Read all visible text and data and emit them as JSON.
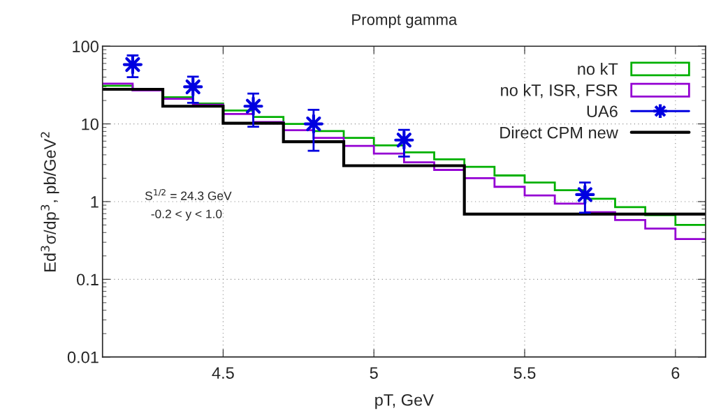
{
  "chart_data": {
    "type": "histogram",
    "title": "Prompt gamma",
    "xlabel": "pT, GeV",
    "ylabel": "Ed$^{3}$σ/dp$^{3}$, pb/GeV$^{2}$",
    "annotations": [
      "S$^{1/2}$ = 24.3 GeV",
      "-0.2 < y < 1.0"
    ],
    "series": [
      {
        "name": "no kT",
        "color": "#00b000",
        "bins": [
          4.1,
          4.2,
          4.3,
          4.4,
          4.5,
          4.6,
          4.7,
          4.8,
          4.9,
          5.0,
          5.1,
          5.2,
          5.3,
          5.4,
          5.5,
          5.6,
          5.7,
          5.8,
          5.9,
          6.0,
          6.1
        ],
        "values": [
          31,
          27,
          22,
          18.3,
          14.9,
          12.3,
          10,
          8.1,
          6.6,
          5.3,
          4.3,
          3.5,
          2.8,
          2.17,
          1.76,
          1.4,
          1.09,
          0.85,
          0.67,
          0.5
        ]
      },
      {
        "name": "no kT, ISR, FSR",
        "color": "#9400d3",
        "bins": [
          4.1,
          4.2,
          4.3,
          4.4,
          4.5,
          4.6,
          4.7,
          4.8,
          4.9,
          5.0,
          5.1,
          5.2,
          5.3,
          5.4,
          5.5,
          5.6,
          5.7,
          5.8,
          5.9,
          6.0,
          6.1
        ],
        "values": [
          33,
          27,
          21,
          17.6,
          13.4,
          10.6,
          8.3,
          6.6,
          5.2,
          4.15,
          3.2,
          2.56,
          2.0,
          1.55,
          1.2,
          0.94,
          0.73,
          0.58,
          0.45,
          0.33
        ]
      },
      {
        "name": "UA6",
        "type": "scatter",
        "color": "#0000e0",
        "marker": "star",
        "x": [
          4.2,
          4.4,
          4.6,
          4.8,
          5.1,
          5.7
        ],
        "values": [
          58,
          30,
          16.9,
          10,
          6.2,
          1.23
        ],
        "errors": [
          [
            40,
            76
          ],
          [
            18.7,
            40.6
          ],
          [
            9.2,
            24.6
          ],
          [
            4.5,
            15.2
          ],
          [
            3.8,
            8.4
          ],
          [
            0.72,
            1.76
          ]
        ]
      },
      {
        "name": "Direct CPM new",
        "color": "#000000",
        "bins": [
          4.1,
          4.3,
          4.5,
          4.7,
          4.9,
          5.3,
          6.1
        ],
        "values": [
          27.9,
          16.9,
          10.2,
          5.9,
          2.9,
          0.69
        ]
      }
    ],
    "xlim": [
      4.1,
      6.1
    ],
    "xticks": [
      4.5,
      5,
      5.5,
      6
    ],
    "ylim": [
      0.01,
      100
    ],
    "yticks": [
      0.01,
      0.1,
      1,
      10,
      100
    ],
    "log": "y",
    "grid": true,
    "legend": "top right"
  }
}
